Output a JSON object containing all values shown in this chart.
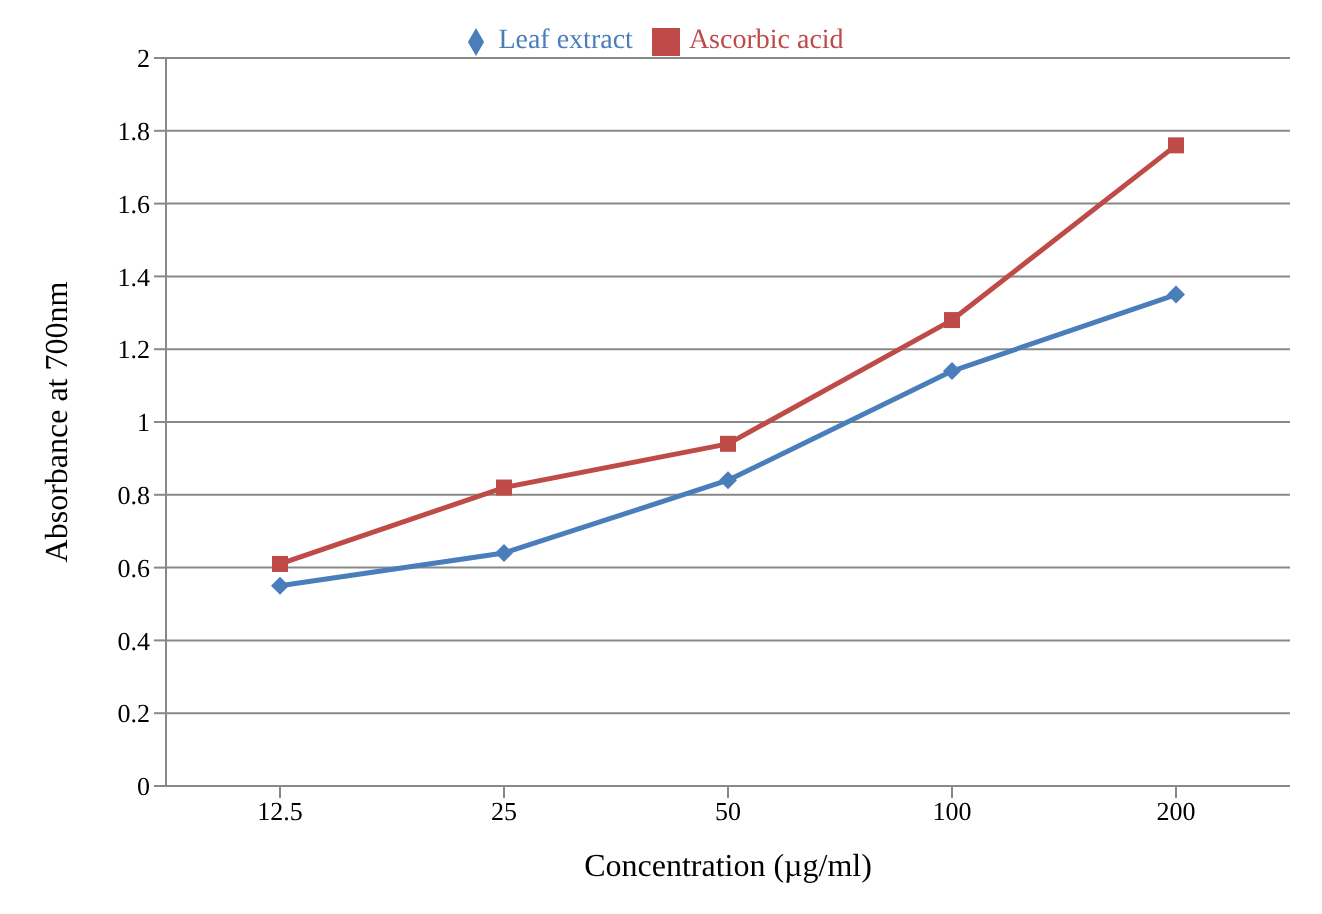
{
  "chart_data": {
    "type": "line",
    "xlabel": "Concentration (µg/ml)",
    "ylabel": "Absorbance at 700nm",
    "categories": [
      "12.5",
      "25",
      "50",
      "100",
      "200"
    ],
    "series": [
      {
        "name": "Leaf extract",
        "color": "#4a7ebb",
        "marker": "diamond",
        "values": [
          0.55,
          0.64,
          0.84,
          1.14,
          1.35
        ]
      },
      {
        "name": "Ascorbic acid",
        "color": "#be4b48",
        "marker": "square",
        "values": [
          0.61,
          0.82,
          0.94,
          1.28,
          1.76
        ]
      }
    ],
    "ylim": [
      0,
      2
    ],
    "yticks": [
      0,
      0.2,
      0.4,
      0.6,
      0.8,
      1,
      1.2,
      1.4,
      1.6,
      1.8,
      2
    ],
    "grid": "y",
    "legend": "top",
    "line_style": "solid"
  }
}
